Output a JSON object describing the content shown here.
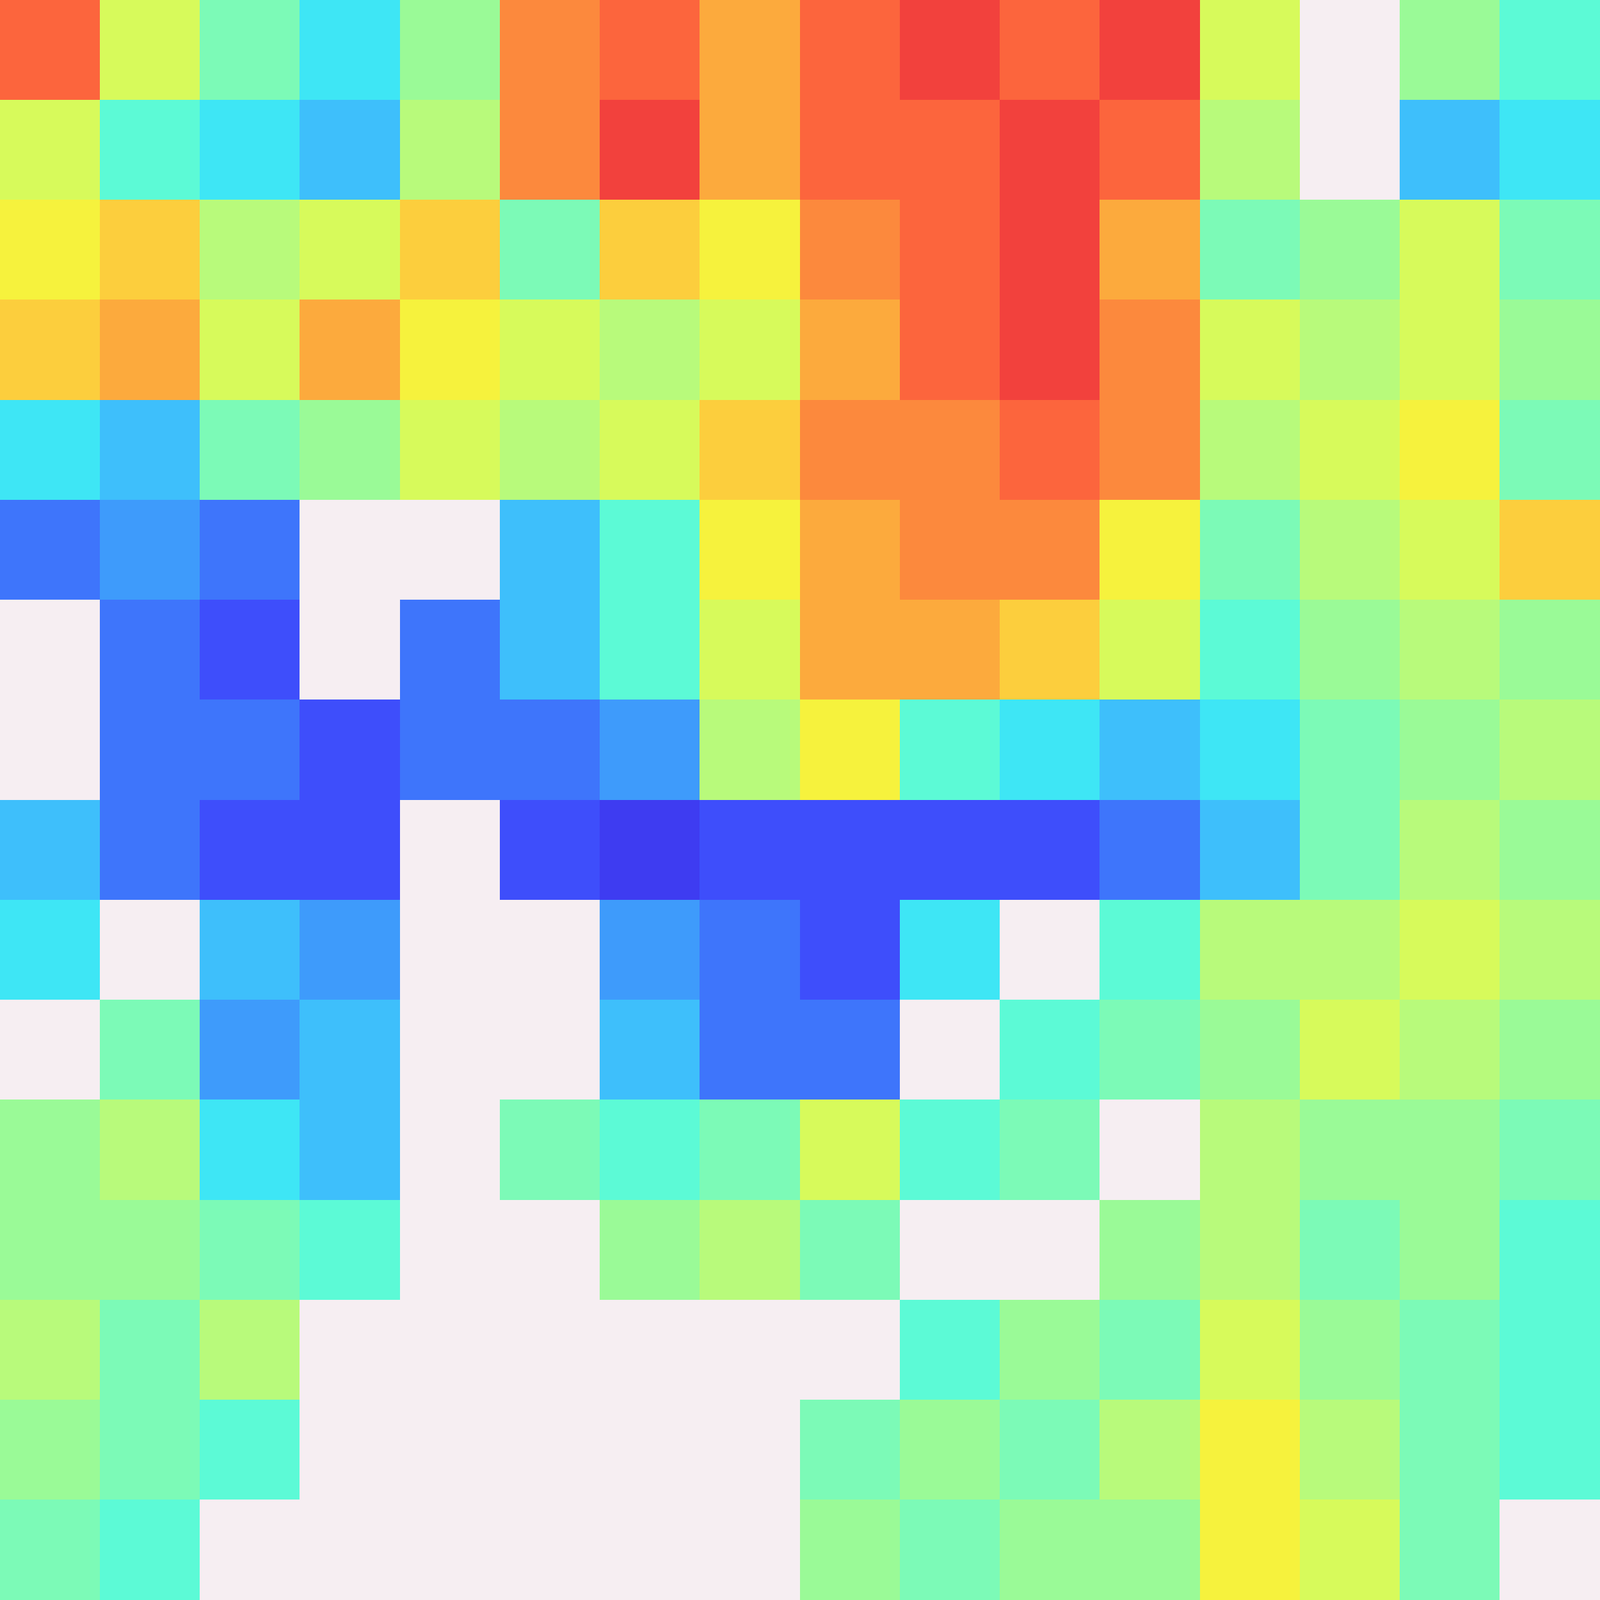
{
  "chart_data": {
    "type": "heatmap",
    "tick_labels": false,
    "vlim": [
      0,
      1
    ],
    "cells": [
      [
        0.85,
        0.6,
        0.45,
        0.35,
        0.5,
        0.8,
        0.85,
        0.75,
        0.85,
        0.9,
        0.85,
        0.9,
        0.6,
        null,
        0.5,
        0.4
      ],
      [
        0.6,
        0.4,
        0.35,
        0.3,
        0.55,
        0.8,
        0.9,
        0.75,
        0.85,
        0.85,
        0.9,
        0.85,
        0.55,
        null,
        0.3,
        0.35
      ],
      [
        0.65,
        0.7,
        0.55,
        0.6,
        0.7,
        0.45,
        0.7,
        0.65,
        0.8,
        0.85,
        0.9,
        0.75,
        0.45,
        0.5,
        0.6,
        0.45
      ],
      [
        0.7,
        0.75,
        0.6,
        0.75,
        0.65,
        0.6,
        0.55,
        0.6,
        0.75,
        0.85,
        0.9,
        0.8,
        0.6,
        0.55,
        0.6,
        0.5
      ],
      [
        0.35,
        0.3,
        0.45,
        0.5,
        0.6,
        0.55,
        0.6,
        0.7,
        0.8,
        0.8,
        0.85,
        0.8,
        0.55,
        0.6,
        0.65,
        0.45
      ],
      [
        0.2,
        0.25,
        0.2,
        null,
        null,
        0.3,
        0.4,
        0.65,
        0.75,
        0.8,
        0.8,
        0.65,
        0.45,
        0.55,
        0.6,
        0.7
      ],
      [
        null,
        0.2,
        0.15,
        null,
        0.2,
        0.3,
        0.4,
        0.6,
        0.75,
        0.75,
        0.7,
        0.6,
        0.4,
        0.5,
        0.55,
        0.5
      ],
      [
        null,
        0.2,
        0.2,
        0.15,
        0.2,
        0.2,
        0.25,
        0.55,
        0.65,
        0.4,
        0.35,
        0.3,
        0.35,
        0.45,
        0.5,
        0.55
      ],
      [
        0.3,
        0.2,
        0.15,
        0.15,
        null,
        0.15,
        0.1,
        0.15,
        0.15,
        0.15,
        0.15,
        0.2,
        0.3,
        0.45,
        0.55,
        0.5
      ],
      [
        0.35,
        null,
        0.3,
        0.25,
        null,
        null,
        0.25,
        0.2,
        0.15,
        0.35,
        null,
        0.4,
        0.55,
        0.55,
        0.6,
        0.55
      ],
      [
        null,
        0.45,
        0.25,
        0.3,
        null,
        null,
        0.3,
        0.2,
        0.2,
        null,
        0.4,
        0.45,
        0.5,
        0.6,
        0.55,
        0.5
      ],
      [
        0.5,
        0.55,
        0.35,
        0.3,
        null,
        0.45,
        0.4,
        0.45,
        0.6,
        0.4,
        0.45,
        null,
        0.55,
        0.5,
        0.5,
        0.45
      ],
      [
        0.5,
        0.5,
        0.45,
        0.4,
        null,
        null,
        0.5,
        0.55,
        0.45,
        null,
        null,
        0.5,
        0.55,
        0.45,
        0.5,
        0.4
      ],
      [
        0.55,
        0.45,
        0.55,
        null,
        null,
        null,
        null,
        null,
        null,
        0.4,
        0.5,
        0.45,
        0.6,
        0.5,
        0.45,
        0.4
      ],
      [
        0.5,
        0.45,
        0.4,
        null,
        null,
        null,
        null,
        null,
        0.45,
        0.5,
        0.45,
        0.55,
        0.65,
        0.55,
        0.45,
        0.4
      ],
      [
        0.45,
        0.4,
        null,
        null,
        null,
        null,
        null,
        null,
        0.5,
        0.45,
        0.5,
        0.5,
        0.65,
        0.6,
        0.45,
        null
      ]
    ]
  }
}
